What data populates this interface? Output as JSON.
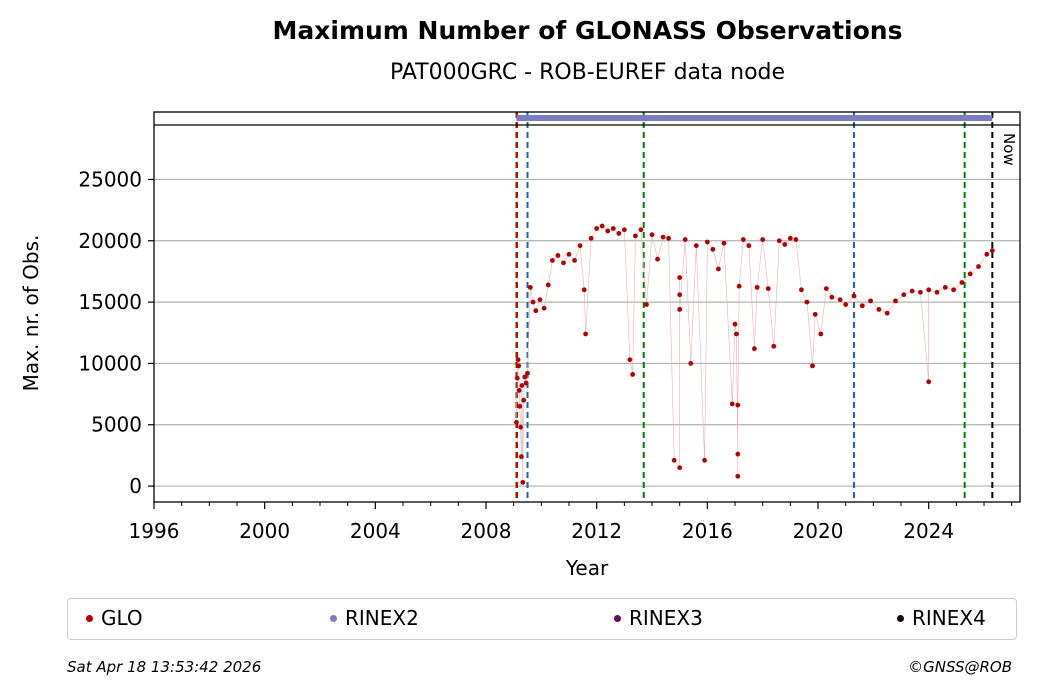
{
  "chart_data": {
    "type": "scatter",
    "title": "Maximum Number of GLONASS Observations",
    "subtitle": "PAT000GRC - ROB-EUREF data node",
    "xlabel": "Year",
    "ylabel": "Max. nr. of Obs.",
    "xlim": [
      1996,
      2027.3
    ],
    "ylim": [
      -1300,
      30500
    ],
    "x_ticks": [
      1996,
      2000,
      2004,
      2008,
      2012,
      2016,
      2020,
      2024
    ],
    "x_tick_labels": [
      "1996",
      "2000",
      "2004",
      "2008",
      "2012",
      "2016",
      "2020",
      "2024"
    ],
    "y_ticks": [
      0,
      5000,
      10000,
      15000,
      20000,
      25000
    ],
    "y_tick_labels": [
      "0",
      "5000",
      "10000",
      "15000",
      "20000",
      "25000"
    ],
    "grid": "horizontal",
    "now_label": "Now",
    "now_x": 2026.3,
    "vertical_lines": [
      {
        "x": 2009.1,
        "color": "#008000"
      },
      {
        "x": 2009.12,
        "color": "#d40000"
      },
      {
        "x": 2009.5,
        "color": "#1f5fb4"
      },
      {
        "x": 2013.7,
        "color": "#008000"
      },
      {
        "x": 2021.3,
        "color": "#1f5fb4"
      },
      {
        "x": 2025.3,
        "color": "#008000"
      },
      {
        "x": 2026.3,
        "color": "#000000"
      }
    ],
    "rinex2_bar": {
      "x_start": 2009.1,
      "x_end": 2026.3
    },
    "series": [
      {
        "name": "GLO",
        "color": "#b30000",
        "points": [
          [
            2009.1,
            5200
          ],
          [
            2009.13,
            8800
          ],
          [
            2009.16,
            10300
          ],
          [
            2009.18,
            9800
          ],
          [
            2009.2,
            7800
          ],
          [
            2009.22,
            6500
          ],
          [
            2009.25,
            4800
          ],
          [
            2009.28,
            2400
          ],
          [
            2009.3,
            8200
          ],
          [
            2009.33,
            300
          ],
          [
            2009.36,
            7000
          ],
          [
            2009.4,
            8900
          ],
          [
            2009.45,
            8400
          ],
          [
            2009.5,
            9200
          ],
          [
            2009.6,
            16200
          ],
          [
            2009.7,
            15000
          ],
          [
            2009.8,
            14300
          ],
          [
            2009.95,
            15200
          ],
          [
            2010.1,
            14500
          ],
          [
            2010.25,
            16400
          ],
          [
            2010.4,
            18400
          ],
          [
            2010.6,
            18800
          ],
          [
            2010.8,
            18200
          ],
          [
            2011.0,
            18900
          ],
          [
            2011.2,
            18400
          ],
          [
            2011.4,
            19600
          ],
          [
            2011.55,
            16000
          ],
          [
            2011.6,
            12400
          ],
          [
            2011.8,
            20200
          ],
          [
            2012.0,
            21000
          ],
          [
            2012.2,
            21200
          ],
          [
            2012.4,
            20800
          ],
          [
            2012.6,
            21000
          ],
          [
            2012.8,
            20600
          ],
          [
            2013.0,
            20900
          ],
          [
            2013.2,
            10300
          ],
          [
            2013.3,
            9100
          ],
          [
            2013.4,
            20400
          ],
          [
            2013.6,
            20900
          ],
          [
            2013.8,
            14800
          ],
          [
            2014.0,
            20500
          ],
          [
            2014.2,
            18500
          ],
          [
            2014.4,
            20300
          ],
          [
            2014.6,
            20200
          ],
          [
            2014.8,
            2100
          ],
          [
            2015.0,
            1500
          ],
          [
            2015.0,
            15600
          ],
          [
            2015.0,
            17000
          ],
          [
            2015.0,
            14400
          ],
          [
            2015.2,
            20100
          ],
          [
            2015.4,
            10000
          ],
          [
            2015.6,
            19600
          ],
          [
            2015.9,
            2100
          ],
          [
            2016.0,
            19900
          ],
          [
            2016.2,
            19300
          ],
          [
            2016.4,
            17700
          ],
          [
            2016.6,
            19800
          ],
          [
            2016.9,
            6700
          ],
          [
            2017.0,
            13200
          ],
          [
            2017.05,
            12400
          ],
          [
            2017.1,
            2600
          ],
          [
            2017.1,
            800
          ],
          [
            2017.1,
            6600
          ],
          [
            2017.15,
            16300
          ],
          [
            2017.3,
            20100
          ],
          [
            2017.5,
            19600
          ],
          [
            2017.7,
            11200
          ],
          [
            2017.8,
            16200
          ],
          [
            2018.0,
            20100
          ],
          [
            2018.2,
            16100
          ],
          [
            2018.4,
            11400
          ],
          [
            2018.6,
            20000
          ],
          [
            2018.8,
            19700
          ],
          [
            2019.0,
            20200
          ],
          [
            2019.2,
            20100
          ],
          [
            2019.4,
            16000
          ],
          [
            2019.6,
            15000
          ],
          [
            2019.8,
            9800
          ],
          [
            2019.9,
            14000
          ],
          [
            2020.1,
            12400
          ],
          [
            2020.3,
            16100
          ],
          [
            2020.5,
            15400
          ],
          [
            2020.8,
            15200
          ],
          [
            2021.0,
            14800
          ],
          [
            2021.3,
            15500
          ],
          [
            2021.6,
            14700
          ],
          [
            2021.9,
            15100
          ],
          [
            2022.2,
            14400
          ],
          [
            2022.5,
            14100
          ],
          [
            2022.8,
            15100
          ],
          [
            2023.1,
            15600
          ],
          [
            2023.4,
            15900
          ],
          [
            2023.7,
            15800
          ],
          [
            2024.0,
            8500
          ],
          [
            2024.0,
            16000
          ],
          [
            2024.3,
            15800
          ],
          [
            2024.6,
            16200
          ],
          [
            2024.9,
            16000
          ],
          [
            2025.2,
            16600
          ],
          [
            2025.5,
            17300
          ],
          [
            2025.8,
            17900
          ],
          [
            2026.1,
            18900
          ],
          [
            2026.3,
            19200
          ]
        ]
      },
      {
        "name": "RINEX2",
        "color": "#7b7bbf",
        "points": []
      },
      {
        "name": "RINEX3",
        "color": "#6a0060",
        "points": []
      },
      {
        "name": "RINEX4",
        "color": "#1a0012",
        "points": []
      }
    ]
  },
  "footer": {
    "timestamp": "Sat Apr 18 13:53:42 2026",
    "copyright": "©GNSS@ROB"
  }
}
